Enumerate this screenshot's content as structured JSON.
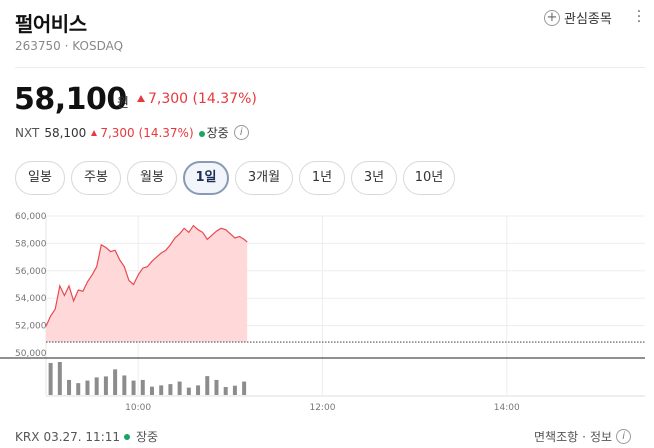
{
  "header": {
    "title": "펄어비스",
    "code": "263750",
    "separator": "·",
    "market": "KOSDAQ",
    "watch_label": "관심종목"
  },
  "quote": {
    "price": "58,100",
    "unit": "원",
    "change": "7,300",
    "change_pct": "(14.37%)"
  },
  "nxt": {
    "label": "NXT",
    "price": "58,100",
    "change": "7,300",
    "change_pct": "(14.37%)",
    "status": "장중"
  },
  "tabs": [
    {
      "label": "일봉",
      "active": false
    },
    {
      "label": "주봉",
      "active": false
    },
    {
      "label": "월봉",
      "active": false
    },
    {
      "label": "1일",
      "active": true
    },
    {
      "label": "3개월",
      "active": false
    },
    {
      "label": "1년",
      "active": false
    },
    {
      "label": "3년",
      "active": false
    },
    {
      "label": "10년",
      "active": false
    }
  ],
  "chart_data": {
    "type": "area",
    "y_ticks": [
      "60,000",
      "58,000",
      "56,000",
      "54,000",
      "52,000",
      "50,000"
    ],
    "ylim": [
      50000,
      60000
    ],
    "x_ticks": [
      "10:00",
      "12:00",
      "14:00"
    ],
    "x_range": [
      "09:00",
      "15:30"
    ],
    "reference_price": 50800,
    "colors": {
      "line": "#e8494f",
      "fill": "#ffd9da",
      "bars": "#8c8c8c",
      "ref": "#555555"
    },
    "price_series": {
      "x": [
        "09:00",
        "09:03",
        "09:06",
        "09:09",
        "09:12",
        "09:15",
        "09:18",
        "09:21",
        "09:24",
        "09:27",
        "09:30",
        "09:33",
        "09:36",
        "09:39",
        "09:42",
        "09:45",
        "09:48",
        "09:51",
        "09:54",
        "09:57",
        "10:00",
        "10:03",
        "10:06",
        "10:09",
        "10:12",
        "10:15",
        "10:18",
        "10:21",
        "10:24",
        "10:27",
        "10:30",
        "10:33",
        "10:36",
        "10:39",
        "10:42",
        "10:45",
        "10:48",
        "10:51",
        "10:54",
        "10:57",
        "11:00",
        "11:03",
        "11:06",
        "11:09",
        "11:11"
      ],
      "values": [
        51950,
        52700,
        53200,
        54900,
        54200,
        54900,
        53800,
        54600,
        54500,
        55200,
        55700,
        56300,
        57900,
        57700,
        57400,
        57500,
        56800,
        56300,
        55300,
        55000,
        55700,
        56200,
        56300,
        56700,
        57000,
        57300,
        57500,
        57900,
        58400,
        58700,
        59100,
        58800,
        59300,
        59000,
        58800,
        58300,
        58600,
        58900,
        59100,
        59000,
        58700,
        58400,
        58500,
        58300,
        58100
      ]
    },
    "volume_bars": {
      "x": [
        "09:03",
        "09:09",
        "09:15",
        "09:21",
        "09:27",
        "09:33",
        "09:39",
        "09:45",
        "09:51",
        "09:57",
        "10:03",
        "10:09",
        "10:15",
        "10:21",
        "10:27",
        "10:33",
        "10:39",
        "10:45",
        "10:51",
        "10:57",
        "11:03",
        "11:09"
      ],
      "values": [
        100,
        103,
        47,
        37,
        45,
        55,
        58,
        80,
        61,
        45,
        47,
        26,
        30,
        34,
        42,
        23,
        30,
        59,
        47,
        25,
        29,
        42
      ]
    }
  },
  "footer": {
    "exchange": "KRX",
    "timestamp": "03.27. 11:11",
    "status": "장중",
    "disclaimer": "면책조항",
    "sep": "·",
    "info": "정보"
  }
}
